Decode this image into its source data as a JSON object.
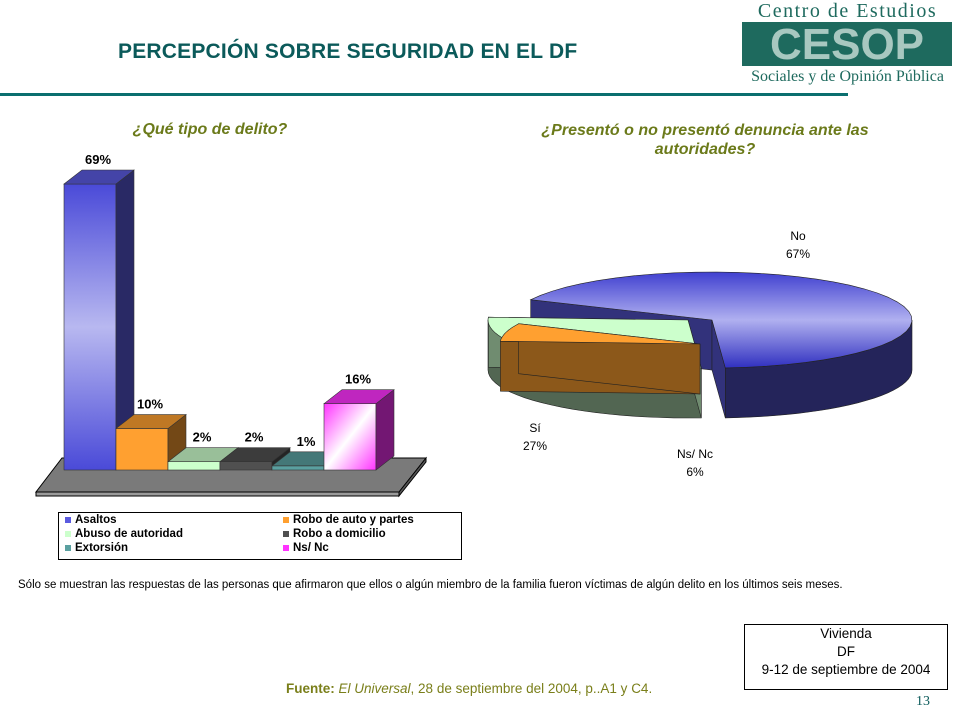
{
  "header": {
    "title": "PERCEPCIÓN SOBRE SEGURIDAD EN EL DF",
    "logo_top": "Centro de Estudios",
    "logo_mid": "CESOP",
    "logo_bottom": "Sociales y de Opinión Pública"
  },
  "colors": {
    "title": "#0b5a5a",
    "accent_rule": "#0b6f6f",
    "subtitle": "#6b7a1a"
  },
  "chart_data": [
    {
      "type": "bar",
      "title": "¿Qué tipo de delito?",
      "categories": [
        "Asaltos",
        "Robo de auto y partes",
        "Abuso de autoridad",
        "Robo a domicilio",
        "Extorsión",
        "Ns/ Nc"
      ],
      "values": [
        69,
        10,
        2,
        2,
        1,
        16
      ],
      "value_labels": [
        "69%",
        "10%",
        "2%",
        "2%",
        "1%",
        "16%"
      ],
      "colors": [
        "#5a5ae0",
        "#ffa030",
        "#ccffcc",
        "#505050",
        "#5aa0a0",
        "#ff33ff"
      ],
      "ylim": [
        0,
        69
      ],
      "grid": false,
      "legend_position": "bottom"
    },
    {
      "type": "pie",
      "title": "¿Presentó o no presentó denuncia ante las autoridades?",
      "categories": [
        "No",
        "Sí",
        "Ns/ Nc"
      ],
      "values": [
        67,
        27,
        6
      ],
      "value_labels": [
        "67%",
        "27%",
        "6%"
      ],
      "colors": [
        "#5a5ae0",
        "#ccffcc",
        "#ffa030"
      ]
    }
  ],
  "footnote": "Sólo se muestran las respuestas de las personas que afirmaron que ellos o algún miembro de la familia fueron víctimas de algún delito en los últimos seis meses.",
  "survey_box": {
    "line1": "Vivienda",
    "line2": "DF",
    "line3": "9-12 de septiembre de 2004"
  },
  "source": {
    "label": "Fuente:",
    "publication": "El Universal",
    "rest": ", 28  de septiembre del 2004, p..A1 y C4."
  },
  "page_number": "13"
}
